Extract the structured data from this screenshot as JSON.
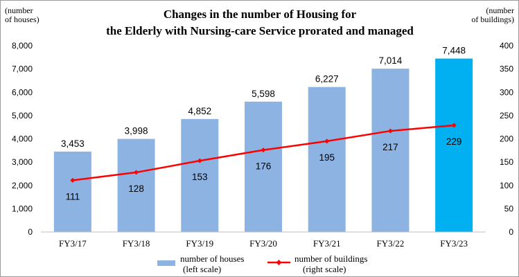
{
  "chart_data": {
    "type": "bar",
    "title_line1": "Changes in the number of Housing for",
    "title_line2": "the Elderly with Nursing-care Service prorated and managed",
    "left_axis_unit": [
      "(number",
      "of houses)"
    ],
    "right_axis_unit": [
      "(number",
      "of buildings)"
    ],
    "categories": [
      "FY3/17",
      "FY3/18",
      "FY3/19",
      "FY3/20",
      "FY3/21",
      "FY3/22",
      "FY3/23"
    ],
    "series": [
      {
        "type": "bar",
        "axis": "left",
        "values": [
          3453,
          3998,
          4852,
          5598,
          6227,
          7014,
          7448
        ],
        "labels": [
          "3,453",
          "3,998",
          "4,852",
          "5,598",
          "6,227",
          "7,014",
          "7,448"
        ],
        "color": "#8db3e2",
        "highlight_color": "#00b0f0",
        "highlight_index": 6
      },
      {
        "type": "line",
        "axis": "right",
        "values": [
          111,
          128,
          153,
          176,
          195,
          217,
          229
        ],
        "labels": [
          "111",
          "128",
          "153",
          "176",
          "195",
          "217",
          "229"
        ],
        "color": "#ff0000"
      }
    ],
    "left_ylim": [
      0,
      8000
    ],
    "right_ylim": [
      0,
      400
    ],
    "left_ticks": [
      "0",
      "1,000",
      "2,000",
      "3,000",
      "4,000",
      "5,000",
      "6,000",
      "7,000",
      "8,000"
    ],
    "right_ticks": [
      "0",
      "50",
      "100",
      "150",
      "200",
      "250",
      "300",
      "350",
      "400"
    ],
    "grid": false,
    "legend_position": "bottom",
    "legend": [
      {
        "line1": "number of houses",
        "line2": "(left scale)"
      },
      {
        "line1": "number of buildings",
        "line2": "(right scale)"
      }
    ]
  }
}
